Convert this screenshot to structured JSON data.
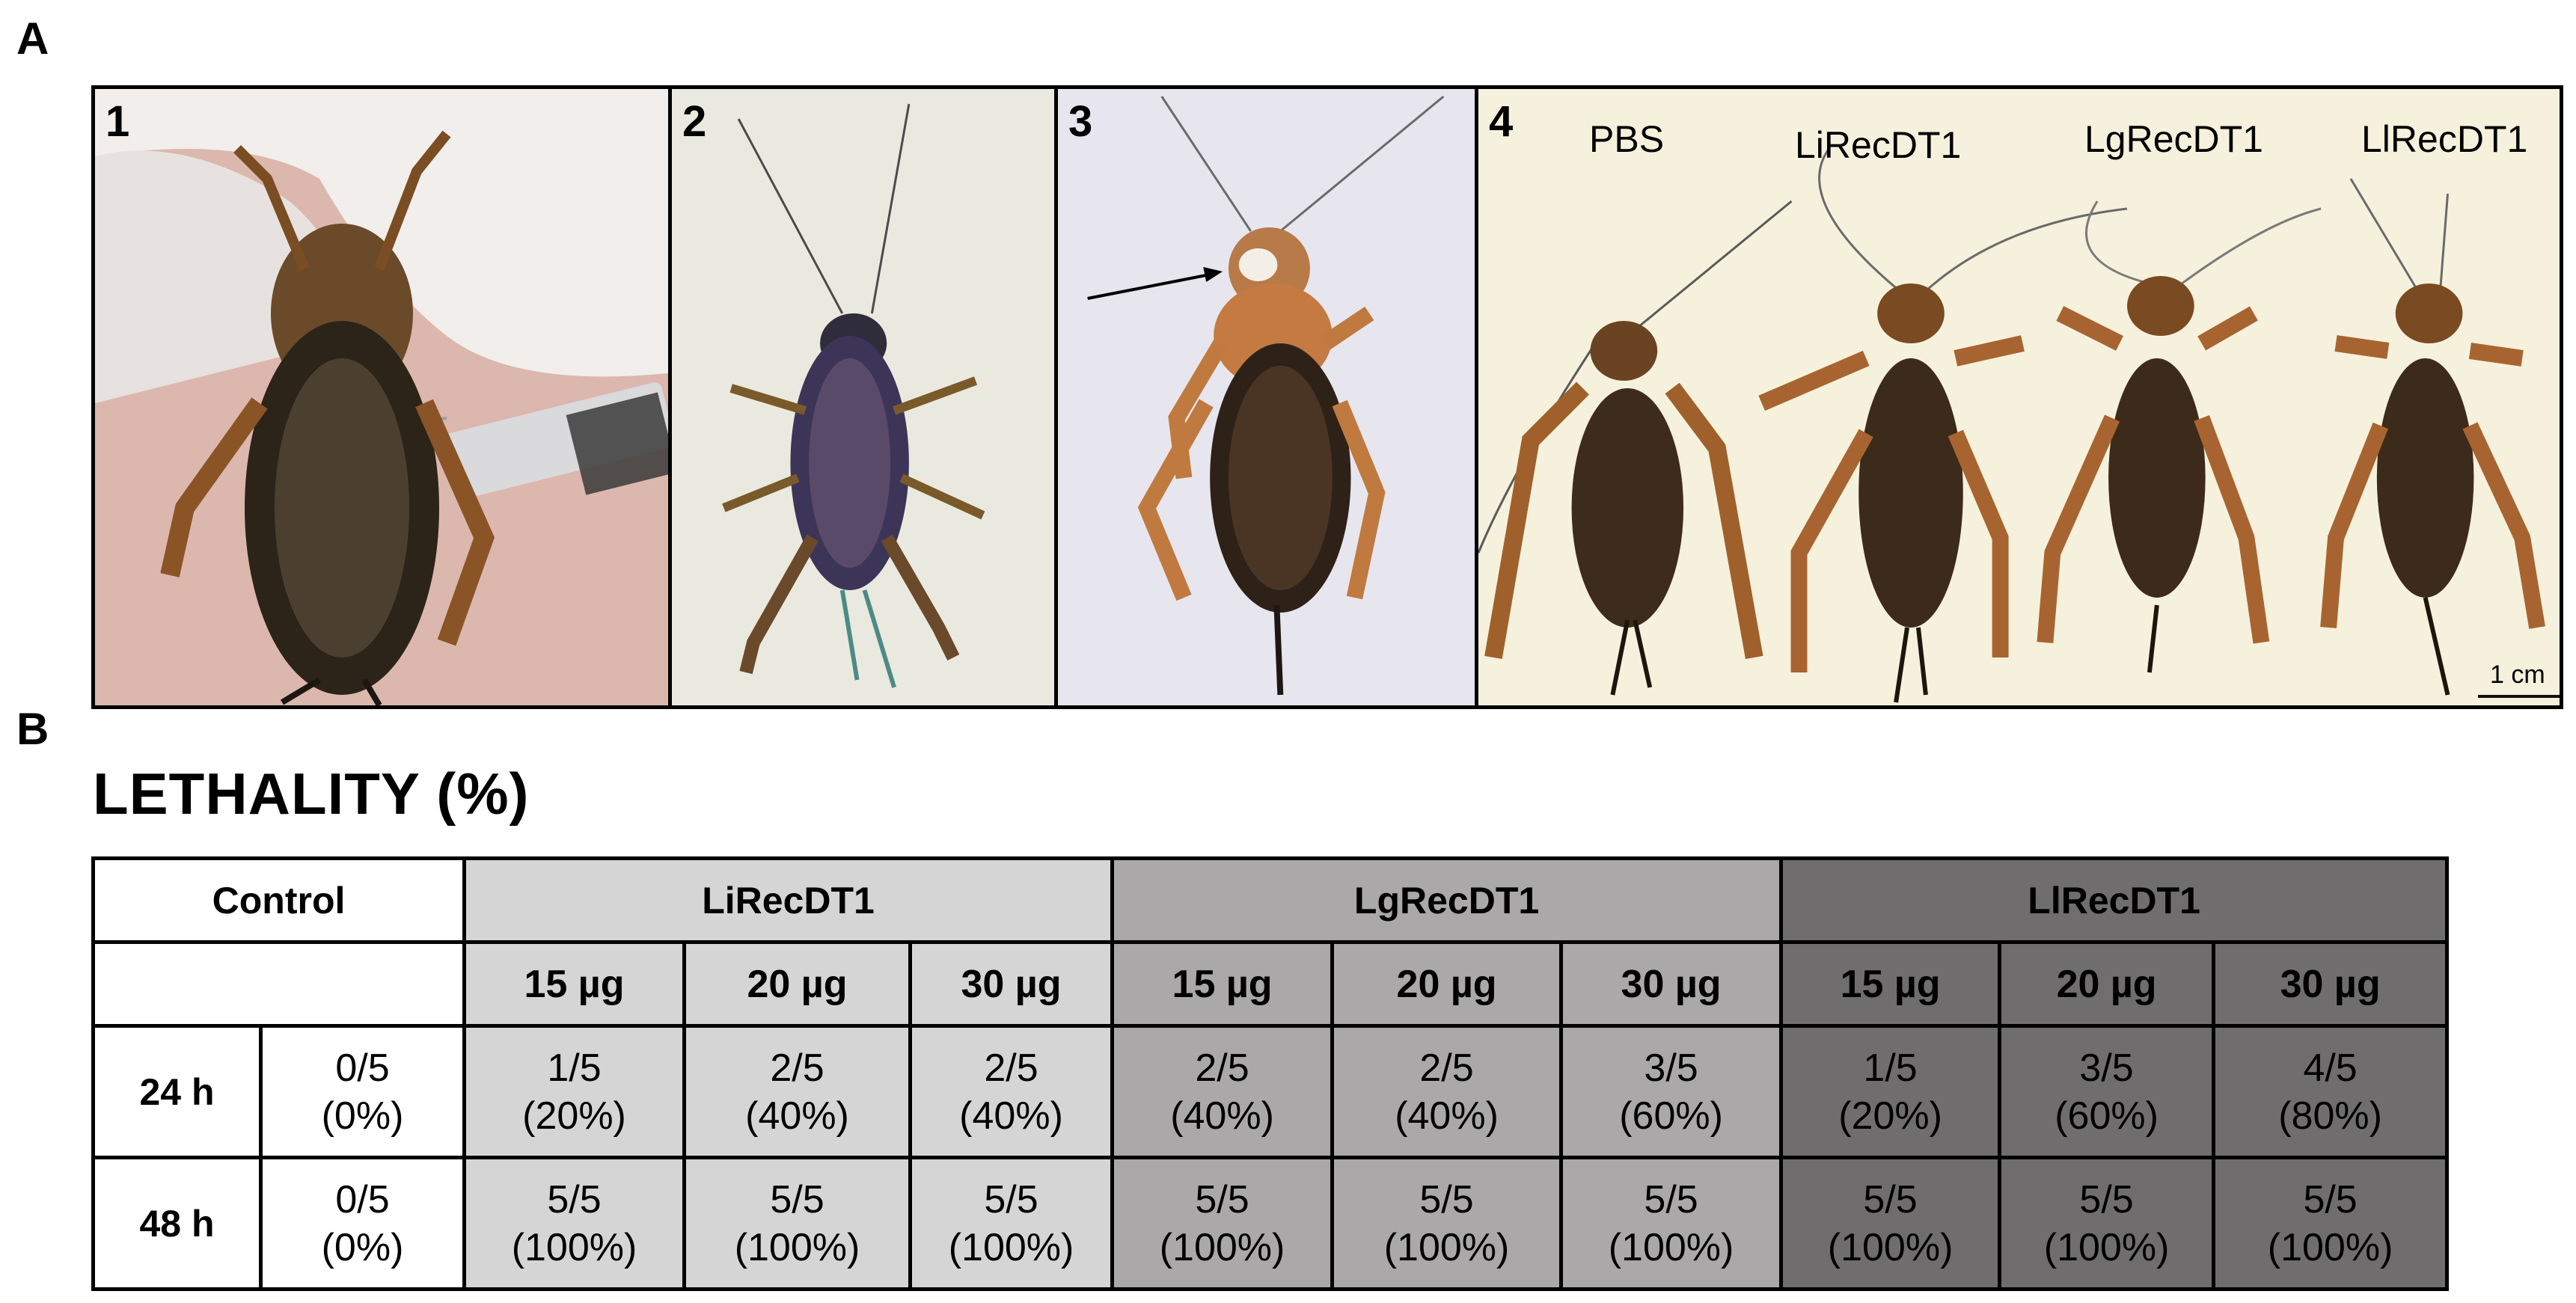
{
  "panel_a": {
    "letter": "A",
    "photos": [
      {
        "number": "1"
      },
      {
        "number": "2"
      },
      {
        "number": "3"
      },
      {
        "number": "4"
      }
    ],
    "photo4_labels": [
      "PBS",
      "LiRecDT1",
      "LgRecDT1",
      "LlRecDT1"
    ],
    "scale_bar_label": "1 cm"
  },
  "panel_b": {
    "letter": "B",
    "title": "LETHALITY (%)",
    "table": {
      "groups": [
        "Control",
        "LiRecDT1",
        "LgRecDT1",
        "LlRecDT1"
      ],
      "doses": [
        "15 µg",
        "20 µg",
        "30 µg",
        "15 µg",
        "20 µg",
        "30 µg",
        "15 µg",
        "20 µg",
        "30 µg"
      ],
      "rows": [
        {
          "time": "24 h",
          "control": [
            "0/5",
            "(0%)"
          ],
          "cells": [
            [
              "1/5",
              "(20%)"
            ],
            [
              "2/5",
              "(40%)"
            ],
            [
              "2/5",
              "(40%)"
            ],
            [
              "2/5",
              "(40%)"
            ],
            [
              "2/5",
              "(40%)"
            ],
            [
              "3/5",
              "(60%)"
            ],
            [
              "1/5",
              "(20%)"
            ],
            [
              "3/5",
              "(60%)"
            ],
            [
              "4/5",
              "(80%)"
            ]
          ]
        },
        {
          "time": "48 h",
          "control": [
            "0/5",
            "(0%)"
          ],
          "cells": [
            [
              "5/5",
              "(100%)"
            ],
            [
              "5/5",
              "(100%)"
            ],
            [
              "5/5",
              "(100%)"
            ],
            [
              "5/5",
              "(100%)"
            ],
            [
              "5/5",
              "(100%)"
            ],
            [
              "5/5",
              "(100%)"
            ],
            [
              "5/5",
              "(100%)"
            ],
            [
              "5/5",
              "(100%)"
            ],
            [
              "5/5",
              "(100%)"
            ]
          ]
        }
      ]
    }
  },
  "colors": {
    "control": "#ffffff",
    "LiRecDT1": "#d6d5d6",
    "LgRecDT1": "#aaa8a8",
    "LlRecDT1": "#6f6d6d"
  }
}
